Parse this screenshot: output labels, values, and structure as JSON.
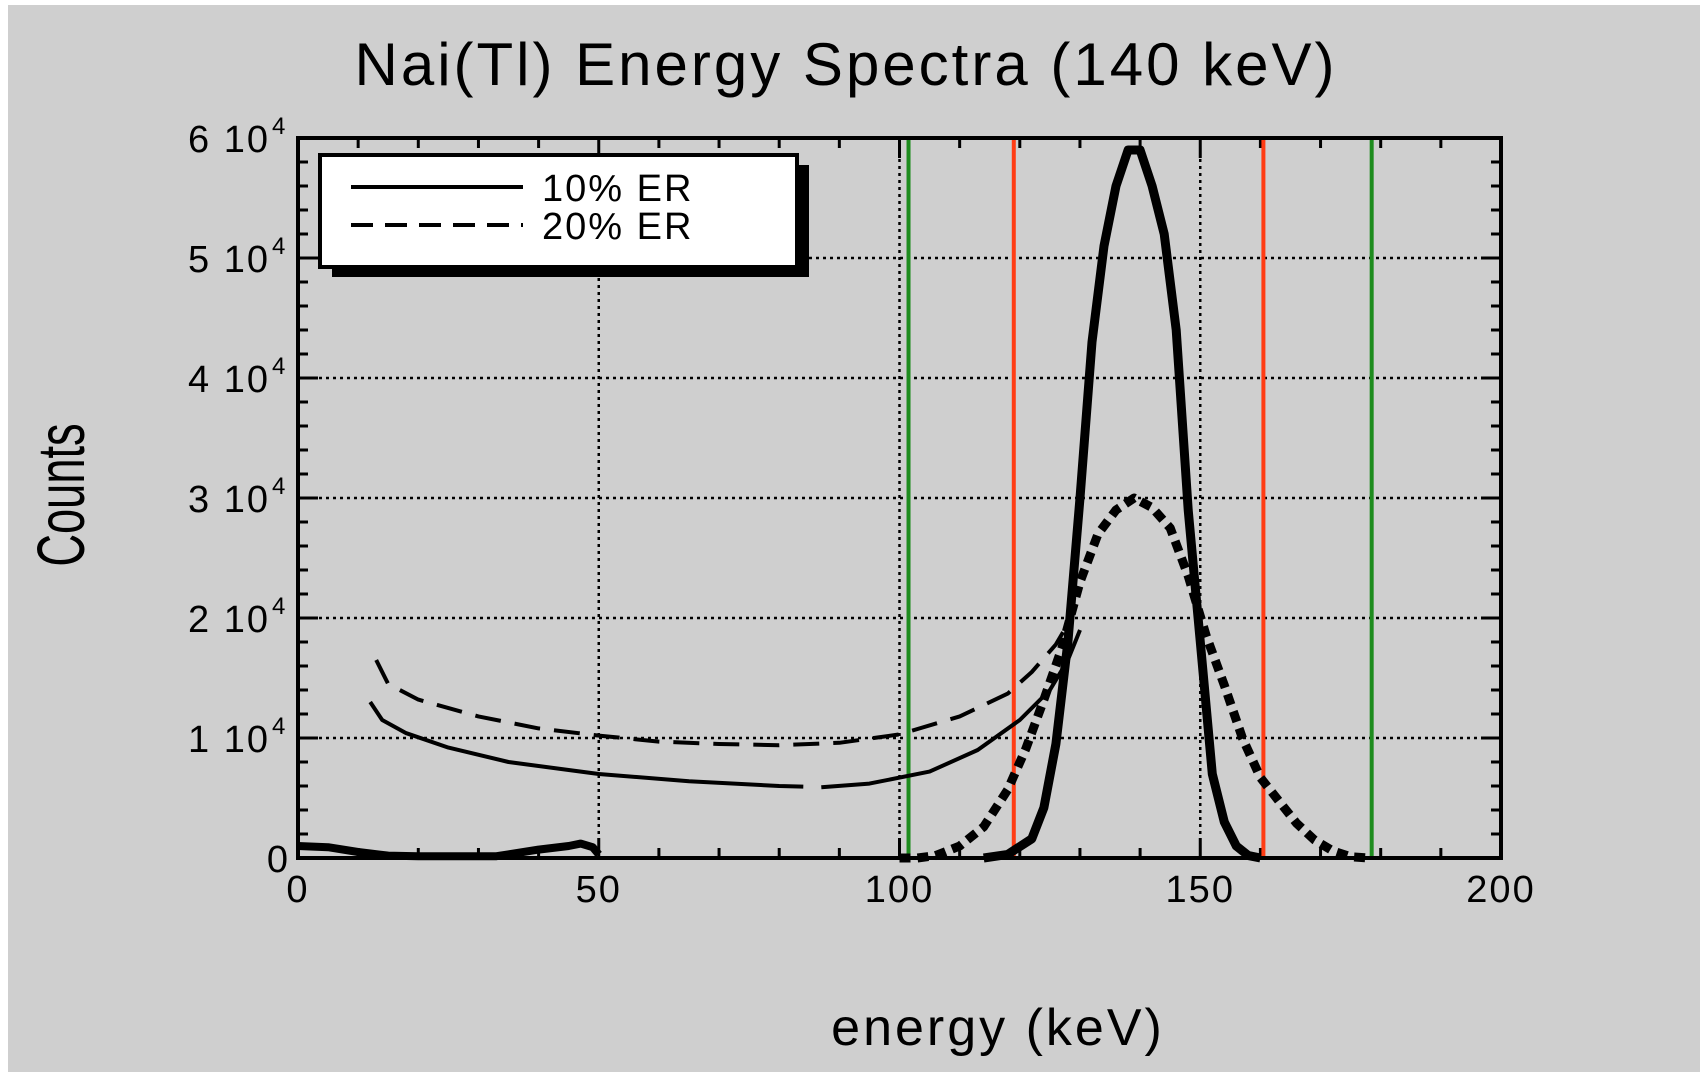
{
  "chart_data": {
    "type": "line",
    "title": "Nai(Tl) Energy Spectra (140 keV)",
    "xlabel": "energy (keV)",
    "ylabel": "Counts",
    "xlim": [
      0,
      200
    ],
    "ylim": [
      0,
      60000
    ],
    "grid": true,
    "legend_position": "top-left",
    "x_ticks": [
      {
        "value": 0,
        "label": "0"
      },
      {
        "value": 50,
        "label": "50"
      },
      {
        "value": 100,
        "label": "100"
      },
      {
        "value": 150,
        "label": "150"
      },
      {
        "value": 200,
        "label": "200"
      }
    ],
    "y_ticks": [
      {
        "value": 0,
        "label": "0",
        "mantissa": "0",
        "exponent": ""
      },
      {
        "value": 10000,
        "label": "1 10^4",
        "mantissa": "1 10",
        "exponent": "4"
      },
      {
        "value": 20000,
        "label": "2 10^4",
        "mantissa": "2 10",
        "exponent": "4"
      },
      {
        "value": 30000,
        "label": "3 10^4",
        "mantissa": "3 10",
        "exponent": "4"
      },
      {
        "value": 40000,
        "label": "4 10^4",
        "mantissa": "4 10",
        "exponent": "4"
      },
      {
        "value": 50000,
        "label": "5 10^4",
        "mantissa": "5 10",
        "exponent": "4"
      },
      {
        "value": 60000,
        "label": "6 10^4",
        "mantissa": "6 10",
        "exponent": "4"
      }
    ],
    "series": [
      {
        "name": "10% ER",
        "style": "solid",
        "color": "#000000",
        "segments": [
          {
            "width": 4,
            "x": [
              12,
              14,
              18,
              25,
              35,
              50,
              65,
              80,
              84
            ],
            "y": [
              13000,
              11500,
              10400,
              9200,
              8000,
              7000,
              6400,
              6000,
              5950
            ]
          },
          {
            "width": 4,
            "x": [
              87,
              95,
              105,
              113,
              120,
              125,
              128,
              130
            ],
            "y": [
              5900,
              6200,
              7200,
              9000,
              11500,
              14000,
              16500,
              19000
            ]
          },
          {
            "width": 8,
            "x": [
              0,
              5,
              10,
              15,
              20,
              33,
              40,
              45,
              47,
              49,
              50
            ],
            "y": [
              1000,
              900,
              500,
              200,
              150,
              150,
              700,
              1000,
              1200,
              900,
              300
            ]
          },
          {
            "width": 9,
            "x": [
              114,
              118,
              122,
              124,
              126,
              128,
              130,
              132,
              134,
              136,
              138,
              140,
              142,
              144,
              146,
              148,
              150,
              152,
              154,
              156,
              158,
              160
            ],
            "y": [
              0,
              300,
              1600,
              4200,
              9500,
              18000,
              30000,
              43000,
              51000,
              56000,
              59000,
              59000,
              56000,
              52000,
              44000,
              29000,
              18000,
              7000,
              3000,
              1000,
              200,
              0
            ]
          }
        ]
      },
      {
        "name": "20% ER",
        "style": "dashed",
        "color": "#000000",
        "segments": [
          {
            "width": 4,
            "x": [
              13,
              15,
              20,
              30,
              40,
              50,
              60,
              70,
              80,
              90,
              100,
              110,
              118,
              122,
              126,
              128
            ],
            "y": [
              16500,
              14500,
              13200,
              11800,
              10800,
              10200,
              9700,
              9500,
              9400,
              9600,
              10300,
              11800,
              13700,
              15500,
              17800,
              19500
            ]
          },
          {
            "width": 9,
            "x": [
              100,
              103,
              106,
              110,
              114,
              118,
              121,
              124,
              127,
              130,
              133,
              136,
              139,
              142,
              145,
              148,
              151,
              154,
              157,
              160,
              163,
              166,
              169,
              172,
              175,
              178
            ],
            "y": [
              0,
              0,
              200,
              1000,
              2600,
              5700,
              9100,
              13200,
              17500,
              23000,
              27000,
              29000,
              30000,
              29200,
              27500,
              23500,
              18500,
              14400,
              10000,
              6700,
              4800,
              2900,
              1500,
              600,
              100,
              0
            ]
          }
        ]
      }
    ],
    "vertical_lines": [
      {
        "x": 101.5,
        "color": "#1e8c1e"
      },
      {
        "x": 178.5,
        "color": "#1e8c1e"
      },
      {
        "x": 119,
        "color": "#ff3c14"
      },
      {
        "x": 160.5,
        "color": "#ff3c14"
      }
    ]
  }
}
